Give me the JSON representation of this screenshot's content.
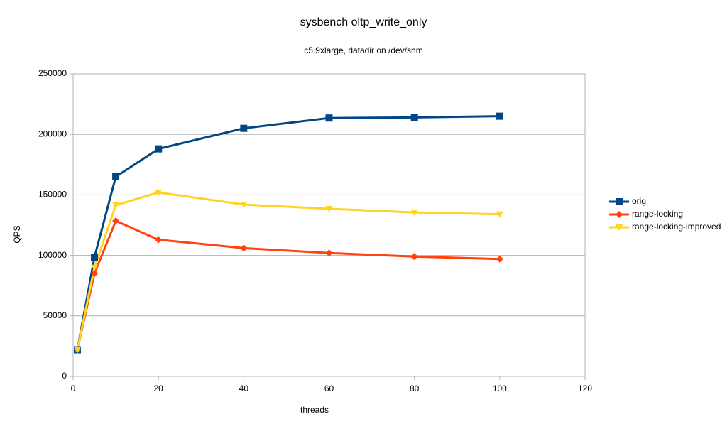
{
  "chart_data": {
    "type": "line",
    "title": "sysbench oltp_write_only",
    "subtitle": "c5.9xlarge, datadir on /dev/shm",
    "xlabel": "threads",
    "ylabel": "QPS",
    "x": [
      1,
      5,
      10,
      20,
      40,
      60,
      80,
      100
    ],
    "series": [
      {
        "name": "orig",
        "color": "#004586",
        "marker": "square",
        "values": [
          22000,
          98500,
          165000,
          188000,
          205000,
          213500,
          214000,
          215000
        ]
      },
      {
        "name": "range-locking",
        "color": "#ff420e",
        "marker": "diamond",
        "values": [
          22000,
          85000,
          128500,
          113000,
          106000,
          102000,
          99000,
          97000
        ]
      },
      {
        "name": "range-locking-improved",
        "color": "#ffd320",
        "marker": "triangle-down",
        "values": [
          22000,
          90000,
          141500,
          152000,
          142000,
          138500,
          135500,
          134000
        ]
      }
    ],
    "xlim": [
      0,
      120
    ],
    "xticks": [
      0,
      20,
      40,
      60,
      80,
      100,
      120
    ],
    "ylim": [
      0,
      250000
    ],
    "yticks": [
      0,
      50000,
      100000,
      150000,
      200000,
      250000
    ],
    "grid": true,
    "legend": "right"
  }
}
